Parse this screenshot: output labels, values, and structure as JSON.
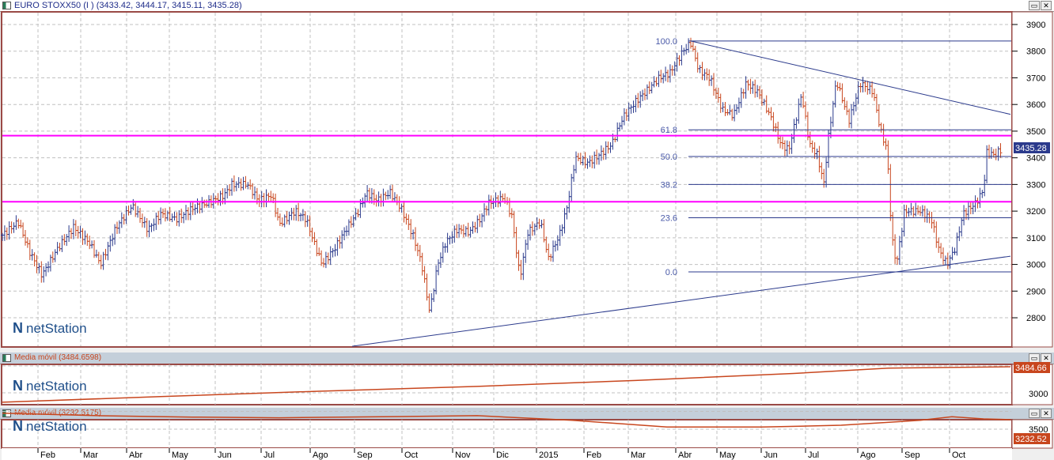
{
  "main_pane": {
    "title": "EURO STOXX50 (I ) (3433.42, 3444.17, 3415.11, 3435.28)",
    "last_value": "3435.28",
    "y_ticks": [
      "3900",
      "3800",
      "3700",
      "3600",
      "3500",
      "3400",
      "3300",
      "3200",
      "3100",
      "3000",
      "2900",
      "2800"
    ],
    "logo": "netStation"
  },
  "ma1_pane": {
    "title": "Media móvil (3484.6598)",
    "last_value": "3484.66",
    "y_tick": "3000",
    "logo": "netStation"
  },
  "ma2_pane": {
    "title": "Media móvil (3232.5175)",
    "last_value": "3232.52",
    "y_tick": "3500",
    "logo": "netStation"
  },
  "window_buttons": {
    "maximize": "▭",
    "close": "✕"
  },
  "colors": {
    "up": "#2b3a8c",
    "down": "#c8461e",
    "fib": "#2b3a8c",
    "support": "#ff00ff",
    "ma": "#c8461e",
    "grid": "#c0c0c0",
    "frame": "#9a4a46"
  },
  "chart_data": {
    "type": "ohlc",
    "x_unit": "calendar days from start",
    "x_labels": [
      "Feb",
      "Mar",
      "Abr",
      "May",
      "Jun",
      "Jul",
      "Ago",
      "Sep",
      "Oct",
      "Nov",
      "Dic",
      "2015",
      "Feb",
      "Mar",
      "Abr",
      "May",
      "Jun",
      "Jul",
      "Ago",
      "Sep",
      "Oct"
    ],
    "x_label_days": [
      24,
      51,
      80,
      107,
      136,
      165,
      196,
      224,
      254,
      286,
      312,
      339,
      369,
      397,
      427,
      453,
      481,
      509,
      542,
      570,
      600
    ],
    "ylim": [
      2700,
      3950
    ],
    "price_path": [
      [
        0,
        3110
      ],
      [
        10,
        3160
      ],
      [
        17,
        3050
      ],
      [
        25,
        2960
      ],
      [
        35,
        3060
      ],
      [
        45,
        3140
      ],
      [
        55,
        3080
      ],
      [
        62,
        3000
      ],
      [
        72,
        3140
      ],
      [
        82,
        3220
      ],
      [
        92,
        3130
      ],
      [
        100,
        3190
      ],
      [
        110,
        3170
      ],
      [
        120,
        3210
      ],
      [
        130,
        3230
      ],
      [
        140,
        3260
      ],
      [
        145,
        3300
      ],
      [
        155,
        3300
      ],
      [
        162,
        3240
      ],
      [
        170,
        3260
      ],
      [
        175,
        3150
      ],
      [
        185,
        3200
      ],
      [
        192,
        3170
      ],
      [
        197,
        3080
      ],
      [
        202,
        3000
      ],
      [
        210,
        3060
      ],
      [
        217,
        3130
      ],
      [
        225,
        3200
      ],
      [
        230,
        3270
      ],
      [
        237,
        3240
      ],
      [
        245,
        3270
      ],
      [
        252,
        3210
      ],
      [
        260,
        3100
      ],
      [
        265,
        3000
      ],
      [
        270,
        2820
      ],
      [
        275,
        3000
      ],
      [
        280,
        3080
      ],
      [
        287,
        3130
      ],
      [
        295,
        3120
      ],
      [
        302,
        3170
      ],
      [
        307,
        3230
      ],
      [
        317,
        3250
      ],
      [
        322,
        3180
      ],
      [
        327,
        2950
      ],
      [
        332,
        3120
      ],
      [
        340,
        3160
      ],
      [
        345,
        3020
      ],
      [
        352,
        3110
      ],
      [
        357,
        3220
      ],
      [
        362,
        3400
      ],
      [
        370,
        3380
      ],
      [
        377,
        3410
      ],
      [
        385,
        3450
      ],
      [
        392,
        3550
      ],
      [
        400,
        3610
      ],
      [
        407,
        3650
      ],
      [
        415,
        3700
      ],
      [
        422,
        3720
      ],
      [
        430,
        3800
      ],
      [
        435,
        3830
      ],
      [
        440,
        3730
      ],
      [
        447,
        3700
      ],
      [
        455,
        3580
      ],
      [
        462,
        3560
      ],
      [
        470,
        3680
      ],
      [
        477,
        3650
      ],
      [
        485,
        3560
      ],
      [
        492,
        3450
      ],
      [
        497,
        3430
      ],
      [
        505,
        3640
      ],
      [
        510,
        3450
      ],
      [
        515,
        3410
      ],
      [
        519,
        3300
      ],
      [
        522,
        3480
      ],
      [
        527,
        3690
      ],
      [
        535,
        3540
      ],
      [
        542,
        3680
      ],
      [
        550,
        3650
      ],
      [
        555,
        3500
      ],
      [
        559,
        3430
      ],
      [
        562,
        3100
      ],
      [
        565,
        3000
      ],
      [
        570,
        3200
      ],
      [
        580,
        3200
      ],
      [
        587,
        3170
      ],
      [
        592,
        3050
      ],
      [
        597,
        3000
      ],
      [
        602,
        3060
      ],
      [
        607,
        3190
      ],
      [
        615,
        3230
      ],
      [
        620,
        3280
      ],
      [
        622,
        3420
      ],
      [
        627,
        3410
      ],
      [
        632,
        3435
      ]
    ],
    "fibonacci": {
      "high": 3838,
      "low": 2972,
      "levels": [
        {
          "label": "100.0",
          "value": 3838
        },
        {
          "label": "61.8",
          "value": 3505
        },
        {
          "label": "50.0",
          "value": 3405
        },
        {
          "label": "38.2",
          "value": 3300
        },
        {
          "label": "23.6",
          "value": 3175
        },
        {
          "label": "0.0",
          "value": 2972
        }
      ]
    },
    "horizontal_lines": [
      3483,
      3235
    ],
    "trendlines": [
      [
        [
          435,
          3838
        ],
        [
          637,
          3563
        ]
      ],
      [
        [
          221,
          2693
        ],
        [
          637,
          3031
        ]
      ]
    ],
    "ma1": {
      "ylim": [
        2850,
        3550
      ],
      "points": [
        [
          0,
          2825
        ],
        [
          100,
          2930
        ],
        [
          200,
          3030
        ],
        [
          300,
          3120
        ],
        [
          400,
          3230
        ],
        [
          500,
          3360
        ],
        [
          560,
          3460
        ],
        [
          637,
          3485
        ]
      ]
    },
    "ma2": {
      "ylim": [
        3100,
        3600
      ],
      "points": [
        [
          0,
          3050
        ],
        [
          60,
          3120
        ],
        [
          120,
          3160
        ],
        [
          175,
          3180
        ],
        [
          240,
          3150
        ],
        [
          300,
          3120
        ],
        [
          360,
          3250
        ],
        [
          420,
          3440
        ],
        [
          480,
          3440
        ],
        [
          530,
          3390
        ],
        [
          580,
          3250
        ],
        [
          600,
          3150
        ],
        [
          620,
          3210
        ],
        [
          637,
          3232
        ]
      ]
    }
  }
}
